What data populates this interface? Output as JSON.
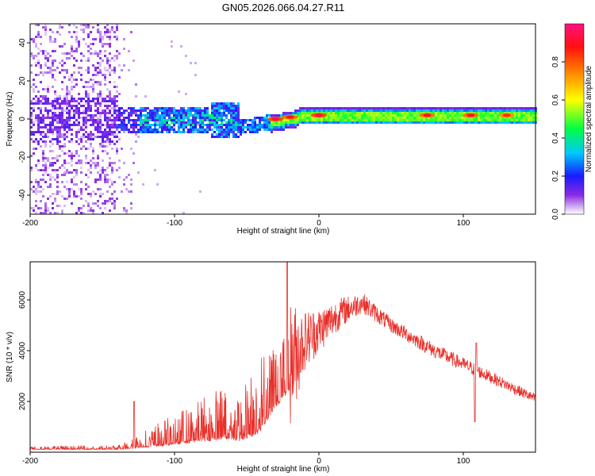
{
  "title": "GN05.2026.066.04.27.R11",
  "chart_data": [
    {
      "type": "heatmap",
      "title": "GN05.2026.066.04.27.R11",
      "xlabel": "Height of straight line (km)",
      "ylabel": "Frequency (Hz)",
      "xlim": [
        -200,
        150
      ],
      "ylim": [
        -50,
        50
      ],
      "x_ticks": [
        "-200",
        "-100",
        "0",
        "100"
      ],
      "y_ticks": [
        "-40",
        "-20",
        "0",
        "20",
        "40"
      ],
      "x_tick_values": [
        -200,
        -100,
        0,
        100
      ],
      "y_tick_values": [
        -40,
        -20,
        0,
        20,
        40
      ],
      "colorbar": {
        "label": "Normalized spectral amplitude",
        "range": [
          0,
          1
        ],
        "ticks": [
          "0.0",
          "0.2",
          "0.4",
          "0.6",
          "0.8"
        ],
        "tick_values": [
          0.0,
          0.2,
          0.4,
          0.6,
          0.8
        ]
      },
      "description_regions": [
        {
          "x_range": [
            -200,
            -140
          ],
          "freq_range": [
            -50,
            50
          ],
          "amplitude": 0.05
        },
        {
          "x_range": [
            -140,
            -55
          ],
          "freq_range": [
            -8,
            8
          ],
          "amplitude": 0.2
        },
        {
          "x_range": [
            -55,
            150
          ],
          "freq_range": [
            0,
            3
          ],
          "amplitude": 0.5
        }
      ],
      "peaks": [
        {
          "x": -30,
          "freq": 0,
          "amplitude": 0.95
        },
        {
          "x": -20,
          "freq": 1,
          "amplitude": 0.9
        },
        {
          "x": 0,
          "freq": 2,
          "amplitude": 0.95
        },
        {
          "x": 75,
          "freq": 2,
          "amplitude": 0.9
        },
        {
          "x": 105,
          "freq": 2,
          "amplitude": 0.9
        },
        {
          "x": 130,
          "freq": 2,
          "amplitude": 0.85
        }
      ]
    },
    {
      "type": "line",
      "xlabel": "Height of straight line (km)",
      "ylabel": "SNR (10 * v/v)",
      "xlim": [
        -200,
        150
      ],
      "ylim": [
        0,
        7500
      ],
      "x_ticks": [
        "-200",
        "-100",
        "0",
        "100"
      ],
      "y_ticks": [
        "2000",
        "4000",
        "6000"
      ],
      "x_tick_values": [
        -200,
        -100,
        0,
        100
      ],
      "y_tick_values": [
        2000,
        4000,
        6000
      ],
      "color": "#e8302a",
      "envelope": [
        {
          "x": -200,
          "base": 150,
          "amp": 150
        },
        {
          "x": -140,
          "base": 150,
          "amp": 150
        },
        {
          "x": -130,
          "base": 200,
          "amp": 500
        },
        {
          "x": -100,
          "base": 400,
          "amp": 1200
        },
        {
          "x": -80,
          "base": 600,
          "amp": 1800
        },
        {
          "x": -65,
          "base": 700,
          "amp": 2200
        },
        {
          "x": -55,
          "base": 600,
          "amp": 2000
        },
        {
          "x": -42,
          "base": 1000,
          "amp": 3000
        },
        {
          "x": -30,
          "base": 2500,
          "amp": 3000
        },
        {
          "x": -20,
          "base": 3500,
          "amp": 2500
        },
        {
          "x": -10,
          "base": 4400,
          "amp": 1200
        },
        {
          "x": 0,
          "base": 4800,
          "amp": 900
        },
        {
          "x": 15,
          "base": 5500,
          "amp": 600
        },
        {
          "x": 30,
          "base": 5900,
          "amp": 400
        },
        {
          "x": 50,
          "base": 5000,
          "amp": 300
        },
        {
          "x": 80,
          "base": 4000,
          "amp": 300
        },
        {
          "x": 110,
          "base": 3200,
          "amp": 250
        },
        {
          "x": 150,
          "base": 2100,
          "amp": 200
        }
      ],
      "spikes": [
        {
          "x": -128,
          "y": 2000
        },
        {
          "x": -22,
          "y": 7500
        },
        {
          "x": 108,
          "y": 1200
        },
        {
          "x": 109,
          "y": 4300
        }
      ]
    }
  ]
}
